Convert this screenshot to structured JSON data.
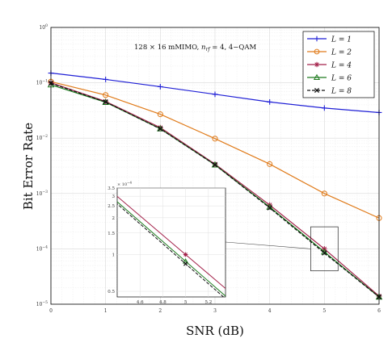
{
  "chart_data": {
    "type": "line",
    "annotation": "128 × 16 mMIMO, n_rf = 4, 4−QAM",
    "annotation_main": "128 × 16 mMIMO, ",
    "annotation_n": "n",
    "annotation_sub": "rf",
    "annotation_rest": " = 4, 4−QAM",
    "xlabel": "SNR (dB)",
    "ylabel": "Bit  Error Rate",
    "xlim": [
      0,
      6
    ],
    "ylim": [
      1e-05,
      1
    ],
    "yscale": "log",
    "grid": true,
    "legend_position": "top-right",
    "x": [
      0,
      1,
      2,
      3,
      4,
      5,
      6
    ],
    "x_tick_labels": [
      "0",
      "1",
      "2",
      "3",
      "4",
      "5",
      "6"
    ],
    "y_tick_exponents": [
      0,
      -1,
      -2,
      -3,
      -4,
      -5
    ],
    "series": [
      {
        "name": "L = 1",
        "legend_label": "L = 1",
        "color": "#1f1fd6",
        "marker": "plus",
        "dashed": false,
        "values": [
          0.15,
          0.115,
          0.085,
          0.062,
          0.045,
          0.035,
          0.029
        ]
      },
      {
        "name": "L = 2",
        "legend_label": "L = 2",
        "color": "#e07b1a",
        "marker": "circle",
        "dashed": false,
        "values": [
          0.105,
          0.06,
          0.027,
          0.0098,
          0.0034,
          0.001,
          0.00036
        ]
      },
      {
        "name": "L = 4",
        "legend_label": "L = 4",
        "color": "#a3224a",
        "marker": "asterisk",
        "dashed": false,
        "values": [
          0.1,
          0.046,
          0.0155,
          0.0034,
          0.00062,
          0.0001,
          1.4e-05
        ]
      },
      {
        "name": "L = 6",
        "legend_label": "L = 6",
        "color": "#1d7a1d",
        "marker": "triangle",
        "dashed": false,
        "values": [
          0.092,
          0.0445,
          0.0148,
          0.0033,
          0.00057,
          8.8e-05,
          1.35e-05
        ]
      },
      {
        "name": "L = 8",
        "legend_label": "L = 8",
        "color": "#111111",
        "marker": "x",
        "dashed": true,
        "values": [
          0.098,
          0.045,
          0.0147,
          0.0033,
          0.00055,
          8.4e-05,
          1.35e-05
        ]
      }
    ],
    "inset": {
      "xlim": [
        4.4,
        5.35
      ],
      "ylim": [
        4.5e-05,
        0.00035
      ],
      "x_tick_values": [
        4.6,
        4.8,
        5,
        5.2
      ],
      "x_tick_labels": [
        "4.6",
        "4.8",
        "5",
        "5.2"
      ],
      "y_tick_values": [
        5e-05,
        0.0001,
        0.00015,
        0.0002,
        0.00025,
        0.0003,
        0.00035
      ],
      "y_tick_labels": [
        "0.5",
        "1",
        "1.5",
        "2",
        "2.5",
        "3",
        "3.5"
      ],
      "y_multiplier": "× 10",
      "y_multiplier_exp": "−4"
    }
  }
}
